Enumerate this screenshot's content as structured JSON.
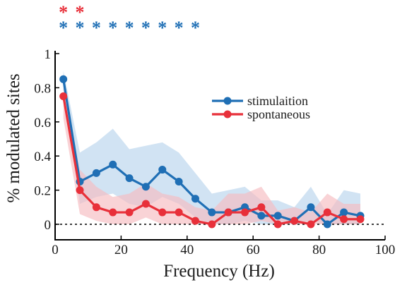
{
  "chart_data": {
    "type": "line",
    "title": "",
    "xlabel": "Frequency (Hz)",
    "ylabel": "% modulated sites",
    "xlim": [
      0,
      100
    ],
    "ylim": [
      -0.05,
      1
    ],
    "x_ticks": [
      0,
      20,
      40,
      60,
      80,
      100
    ],
    "y_ticks": [
      0,
      0.2,
      0.4,
      0.6,
      0.8,
      1
    ],
    "x_tick_labels": [
      "0",
      "20",
      "40",
      "60",
      "80",
      "100"
    ],
    "y_tick_labels": [
      "0",
      "0.2",
      "0.4",
      "0.6",
      "0.8",
      "1"
    ],
    "grid": false,
    "legend_position": "upper-right",
    "reference_line": {
      "y": 0,
      "style": "dotted"
    },
    "x": [
      2.5,
      7.5,
      12.5,
      17.5,
      22.5,
      27.5,
      32.5,
      37.5,
      42.5,
      47.5,
      52.5,
      57.5,
      62.5,
      67.5,
      72.5,
      77.5,
      82.5,
      87.5,
      92.5
    ],
    "series": [
      {
        "name": "stimulaition",
        "color": "#1f6fb5",
        "band_color": "#b8d4ec",
        "values": [
          0.85,
          0.25,
          0.3,
          0.35,
          0.27,
          0.22,
          0.32,
          0.25,
          0.15,
          0.07,
          0.07,
          0.1,
          0.05,
          0.05,
          0.02,
          0.1,
          0.0,
          0.07,
          0.05
        ],
        "upper": [
          0.9,
          0.42,
          0.48,
          0.56,
          0.44,
          0.46,
          0.48,
          0.42,
          0.3,
          0.18,
          0.2,
          0.22,
          0.14,
          0.14,
          0.1,
          0.22,
          0.06,
          0.2,
          0.18
        ],
        "lower": [
          0.78,
          0.12,
          0.16,
          0.18,
          0.12,
          0.1,
          0.16,
          0.12,
          0.04,
          0.0,
          0.0,
          0.02,
          0.0,
          0.0,
          0.0,
          0.02,
          0.0,
          0.0,
          0.0
        ]
      },
      {
        "name": "spontaneous",
        "color": "#e8303a",
        "band_color": "#f6bcc0",
        "values": [
          0.75,
          0.2,
          0.1,
          0.07,
          0.07,
          0.12,
          0.07,
          0.07,
          0.02,
          0.0,
          0.07,
          0.07,
          0.1,
          0.0,
          0.02,
          0.0,
          0.07,
          0.03,
          0.03
        ],
        "upper": [
          0.8,
          0.32,
          0.22,
          0.16,
          0.18,
          0.24,
          0.18,
          0.16,
          0.1,
          0.08,
          0.18,
          0.18,
          0.22,
          0.08,
          0.1,
          0.07,
          0.18,
          0.12,
          0.12
        ],
        "lower": [
          0.62,
          0.06,
          0.02,
          0.0,
          0.0,
          0.04,
          0.0,
          0.0,
          0.0,
          0.0,
          0.0,
          0.0,
          0.02,
          0.0,
          0.0,
          0.0,
          0.0,
          0.0,
          0.0
        ]
      }
    ],
    "significance_markers": [
      {
        "series": "spontaneous",
        "symbol": "*",
        "color": "#e8303a",
        "x": [
          2.5,
          7.5
        ]
      },
      {
        "series": "stimulaition",
        "symbol": "*",
        "color": "#1f6fb5",
        "x": [
          2.5,
          7.5,
          12.5,
          17.5,
          22.5,
          27.5,
          32.5,
          37.5,
          42.5
        ]
      }
    ]
  }
}
